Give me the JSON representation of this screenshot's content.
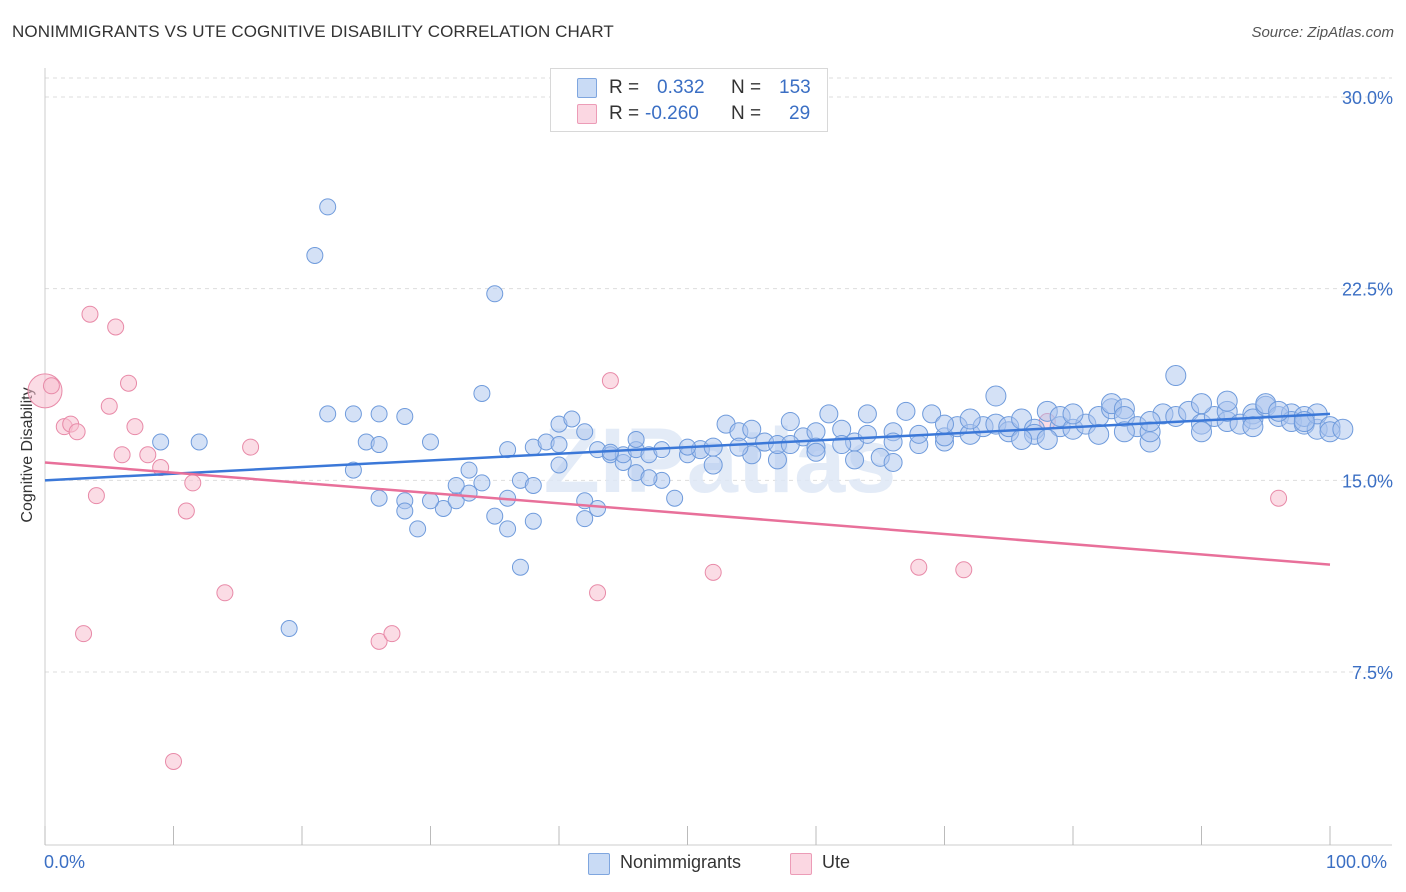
{
  "title": "NONIMMIGRANTS VS UTE COGNITIVE DISABILITY CORRELATION CHART",
  "source": "Source: ZipAtlas.com",
  "watermark": "ZIPatlas",
  "legend": {
    "rows": [
      {
        "r_label": "R =",
        "r_value": "0.332",
        "n_label": "N =",
        "n_value": "153",
        "color": "#a9c4ee",
        "border": "#6f9bdc"
      },
      {
        "r_label": "R =",
        "r_value": "-0.260",
        "n_label": "N =",
        "n_value": "29",
        "color": "#f7bfd0",
        "border": "#e88aa8"
      }
    ]
  },
  "bottom_legend": [
    {
      "label": "Nonimmigrants",
      "color": "#a9c4ee",
      "border": "#6f9bdc"
    },
    {
      "label": "Ute",
      "color": "#f7bfd0",
      "border": "#e88aa8"
    }
  ],
  "chart_data": {
    "type": "scatter",
    "title": "NONIMMIGRANTS VS UTE COGNITIVE DISABILITY CORRELATION CHART",
    "xlabel": "",
    "ylabel": "Cognitive Disability",
    "xlim": [
      0,
      100
    ],
    "ylim": [
      0,
      31
    ],
    "x_tick_labels": [
      "0.0%",
      "100.0%"
    ],
    "y_ticks": [
      7.5,
      15.0,
      22.5,
      30.0
    ],
    "y_tick_labels": [
      "7.5%",
      "15.0%",
      "22.5%",
      "30.0%"
    ],
    "grid": true,
    "legend_position": "top-center",
    "colors": {
      "nonimmigrants": "#3b78d8",
      "ute": "#e8709a"
    },
    "series": [
      {
        "name": "Nonimmigrants",
        "trend": {
          "x0": 0,
          "y0": 15.0,
          "x1": 100,
          "y1": 17.6
        },
        "points": [
          [
            9,
            16.5
          ],
          [
            12,
            16.5
          ],
          [
            19,
            9.2
          ],
          [
            21,
            23.8
          ],
          [
            22,
            25.7
          ],
          [
            22,
            17.6
          ],
          [
            24,
            17.6
          ],
          [
            24,
            15.4
          ],
          [
            25,
            16.5
          ],
          [
            26,
            17.6
          ],
          [
            26,
            14.3
          ],
          [
            26,
            16.4
          ],
          [
            28,
            14.2
          ],
          [
            28,
            17.5
          ],
          [
            29,
            13.1
          ],
          [
            30,
            16.5
          ],
          [
            31,
            13.9
          ],
          [
            32,
            14.2
          ],
          [
            33,
            14.5
          ],
          [
            33,
            15.4
          ],
          [
            34,
            18.4
          ],
          [
            35,
            13.6
          ],
          [
            36,
            14.3
          ],
          [
            36,
            13.1
          ],
          [
            37,
            11.6
          ],
          [
            37,
            15.0
          ],
          [
            38,
            16.3
          ],
          [
            38,
            14.8
          ],
          [
            39,
            16.5
          ],
          [
            40,
            16.4
          ],
          [
            40,
            17.2
          ],
          [
            41,
            17.4
          ],
          [
            42,
            13.5
          ],
          [
            42,
            14.2
          ],
          [
            43,
            13.9
          ],
          [
            43,
            16.2
          ],
          [
            44,
            16.0
          ],
          [
            45,
            15.7
          ],
          [
            45,
            16.0
          ],
          [
            46,
            15.3
          ],
          [
            46,
            16.2
          ],
          [
            47,
            16.0
          ],
          [
            48,
            15.0
          ],
          [
            48,
            16.2
          ],
          [
            49,
            14.3
          ],
          [
            50,
            16.0
          ],
          [
            51,
            16.2
          ],
          [
            52,
            16.3
          ],
          [
            53,
            17.2
          ],
          [
            54,
            16.9
          ],
          [
            55,
            16.0
          ],
          [
            55,
            17.0
          ],
          [
            56,
            16.5
          ],
          [
            57,
            15.8
          ],
          [
            57,
            16.4
          ],
          [
            58,
            17.3
          ],
          [
            59,
            16.7
          ],
          [
            60,
            16.9
          ],
          [
            60,
            16.3
          ],
          [
            61,
            17.6
          ],
          [
            62,
            17.0
          ],
          [
            63,
            15.8
          ],
          [
            63,
            16.5
          ],
          [
            64,
            17.6
          ],
          [
            64,
            16.8
          ],
          [
            65,
            15.9
          ],
          [
            66,
            16.9
          ],
          [
            66,
            16.5
          ],
          [
            67,
            17.7
          ],
          [
            68,
            16.4
          ],
          [
            68,
            16.8
          ],
          [
            69,
            17.6
          ],
          [
            70,
            16.5
          ],
          [
            70,
            16.7
          ],
          [
            71,
            17.1
          ],
          [
            72,
            16.8
          ],
          [
            73,
            17.1
          ],
          [
            74,
            17.2
          ],
          [
            74,
            18.3
          ],
          [
            75,
            16.9
          ],
          [
            75,
            17.1
          ],
          [
            76,
            17.4
          ],
          [
            77,
            17.0
          ],
          [
            77,
            16.8
          ],
          [
            78,
            17.7
          ],
          [
            79,
            17.1
          ],
          [
            79,
            17.5
          ],
          [
            80,
            17.0
          ],
          [
            81,
            17.2
          ],
          [
            82,
            17.5
          ],
          [
            82,
            16.8
          ],
          [
            83,
            17.8
          ],
          [
            83,
            18.0
          ],
          [
            84,
            17.8
          ],
          [
            84,
            17.5
          ],
          [
            85,
            17.1
          ],
          [
            86,
            16.5
          ],
          [
            86,
            16.9
          ],
          [
            87,
            17.6
          ],
          [
            88,
            17.5
          ],
          [
            88,
            19.1
          ],
          [
            89,
            17.7
          ],
          [
            90,
            17.2
          ],
          [
            90,
            16.9
          ],
          [
            91,
            17.5
          ],
          [
            92,
            17.3
          ],
          [
            92,
            17.7
          ],
          [
            93,
            17.2
          ],
          [
            94,
            17.6
          ],
          [
            94,
            17.4
          ],
          [
            95,
            17.9
          ],
          [
            95,
            18.0
          ],
          [
            96,
            17.5
          ],
          [
            97,
            17.6
          ],
          [
            97,
            17.3
          ],
          [
            98,
            17.2
          ],
          [
            98,
            17.5
          ],
          [
            99,
            17.0
          ],
          [
            99,
            17.6
          ],
          [
            100,
            17.1
          ],
          [
            100,
            16.9
          ],
          [
            101,
            17.0
          ],
          [
            60,
            16.1
          ],
          [
            58,
            16.4
          ],
          [
            52,
            15.6
          ],
          [
            50,
            16.3
          ],
          [
            47,
            15.1
          ],
          [
            44,
            16.1
          ],
          [
            42,
            16.9
          ],
          [
            40,
            15.6
          ],
          [
            34,
            14.9
          ],
          [
            32,
            14.8
          ],
          [
            30,
            14.2
          ],
          [
            28,
            13.8
          ],
          [
            36,
            16.2
          ],
          [
            38,
            13.4
          ],
          [
            46,
            16.6
          ],
          [
            54,
            16.3
          ],
          [
            62,
            16.4
          ],
          [
            66,
            15.7
          ],
          [
            70,
            17.2
          ],
          [
            72,
            17.4
          ],
          [
            76,
            16.6
          ],
          [
            78,
            16.6
          ],
          [
            80,
            17.6
          ],
          [
            84,
            16.9
          ],
          [
            86,
            17.3
          ],
          [
            90,
            18.0
          ],
          [
            92,
            18.1
          ],
          [
            94,
            17.1
          ],
          [
            96,
            17.7
          ],
          [
            98,
            17.3
          ],
          [
            35,
            22.3
          ]
        ]
      },
      {
        "name": "Ute",
        "trend": {
          "x0": 0,
          "y0": 15.7,
          "x1": 100,
          "y1": 11.7
        },
        "points": [
          [
            0,
            18.5
          ],
          [
            0.5,
            18.7
          ],
          [
            1.5,
            17.1
          ],
          [
            2,
            17.2
          ],
          [
            2.5,
            16.9
          ],
          [
            3,
            9.0
          ],
          [
            3.5,
            21.5
          ],
          [
            4,
            14.4
          ],
          [
            5,
            17.9
          ],
          [
            5.5,
            21.0
          ],
          [
            6,
            16.0
          ],
          [
            6.5,
            18.8
          ],
          [
            7,
            17.1
          ],
          [
            8,
            16.0
          ],
          [
            9,
            15.5
          ],
          [
            10,
            4.0
          ],
          [
            11,
            13.8
          ],
          [
            11.5,
            14.9
          ],
          [
            14,
            10.6
          ],
          [
            16,
            16.3
          ],
          [
            26,
            8.7
          ],
          [
            27,
            9.0
          ],
          [
            43,
            10.6
          ],
          [
            44,
            18.9
          ],
          [
            52,
            11.4
          ],
          [
            68,
            11.6
          ],
          [
            71.5,
            11.5
          ],
          [
            78,
            17.3
          ],
          [
            96,
            14.3
          ]
        ]
      }
    ]
  }
}
